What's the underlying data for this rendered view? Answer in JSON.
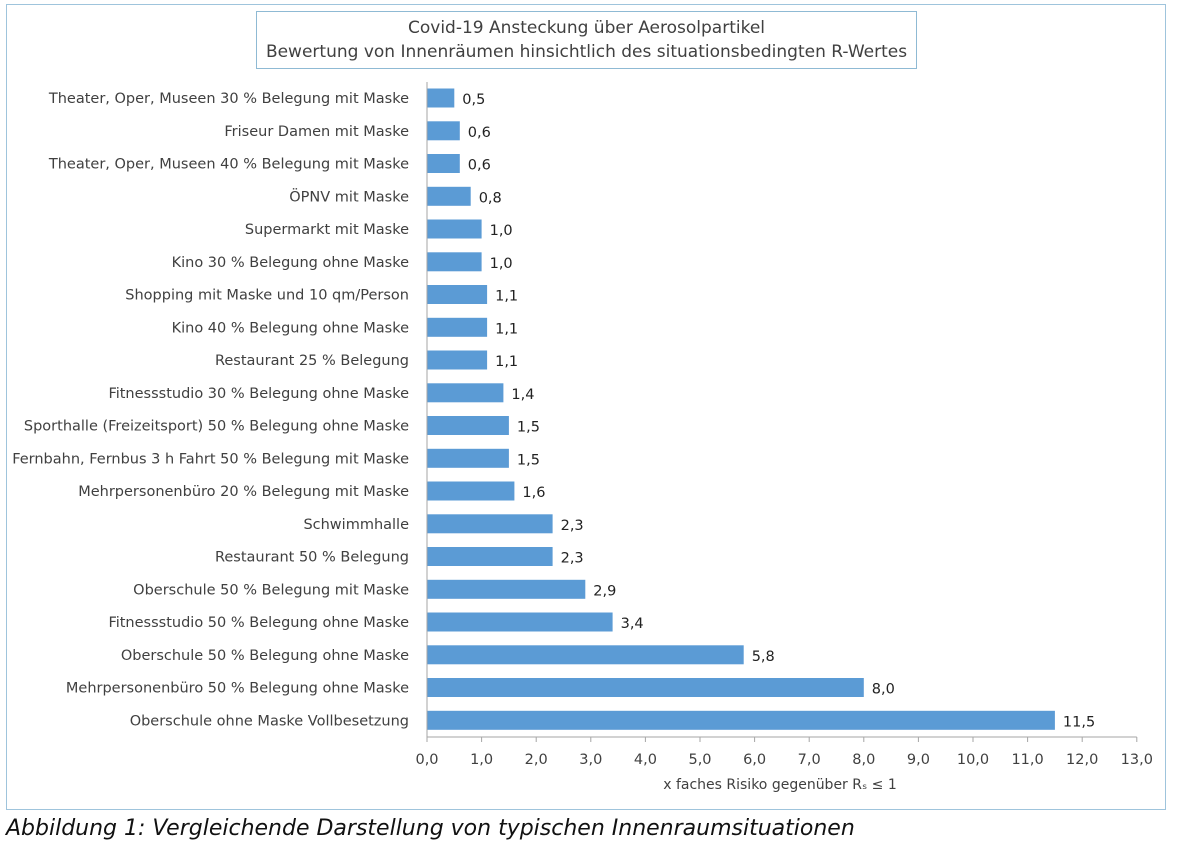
{
  "title": "Covid-19 Ansteckung über Aerosolpartikel",
  "subtitle": "Bewertung von Innenräumen hinsichtlich des situationsbedingten R-Wertes",
  "caption": "Abbildung 1: Vergleichende Darstellung von typischen Innenraumsituationen",
  "colors": {
    "bar": "#5b9bd5",
    "axis": "#a6a6a6",
    "text": "#404040",
    "frame": "#9fc4dc"
  },
  "chart_data": {
    "type": "bar",
    "orientation": "horizontal",
    "title": "Covid-19 Ansteckung über Aerosolpartikel",
    "subtitle": "Bewertung von Innenräumen hinsichtlich des situationsbedingten R-Wertes",
    "xlabel": "x faches Risiko gegenüber Rₛ ≤ 1",
    "ylabel": "",
    "xlim": [
      0,
      13
    ],
    "xticks": [
      "0,0",
      "1,0",
      "2,0",
      "3,0",
      "4,0",
      "5,0",
      "6,0",
      "7,0",
      "8,0",
      "9,0",
      "10,0",
      "11,0",
      "12,0",
      "13,0"
    ],
    "grid": false,
    "legend": "none",
    "categories": [
      "Theater, Oper, Museen 30 % Belegung mit Maske",
      "Friseur Damen mit Maske",
      "Theater, Oper, Museen 40 % Belegung mit Maske",
      "ÖPNV mit Maske",
      "Supermarkt mit Maske",
      "Kino 30 % Belegung ohne Maske",
      "Shopping mit Maske und 10 qm/Person",
      "Kino 40 % Belegung ohne Maske",
      "Restaurant 25 % Belegung",
      "Fitnessstudio 30 % Belegung ohne Maske",
      "Sporthalle  (Freizeitsport) 50 % Belegung ohne Maske",
      "Fernbahn, Fernbus 3 h Fahrt 50 % Belegung mit Maske",
      "Mehrpersonenbüro 20 % Belegung mit Maske",
      "Schwimmhalle",
      "Restaurant 50 % Belegung",
      "Oberschule 50 % Belegung mit Maske",
      "Fitnessstudio 50 % Belegung ohne Maske",
      "Oberschule 50 % Belegung ohne Maske",
      "Mehrpersonenbüro 50 % Belegung ohne Maske",
      "Oberschule ohne Maske Vollbesetzung"
    ],
    "values": [
      0.5,
      0.6,
      0.6,
      0.8,
      1.0,
      1.0,
      1.1,
      1.1,
      1.1,
      1.4,
      1.5,
      1.5,
      1.6,
      2.3,
      2.3,
      2.9,
      3.4,
      5.8,
      8.0,
      11.5
    ],
    "value_labels": [
      "0,5",
      "0,6",
      "0,6",
      "0,8",
      "1,0",
      "1,0",
      "1,1",
      "1,1",
      "1,1",
      "1,4",
      "1,5",
      "1,5",
      "1,6",
      "2,3",
      "2,3",
      "2,9",
      "3,4",
      "5,8",
      "8,0",
      "11,5"
    ]
  }
}
